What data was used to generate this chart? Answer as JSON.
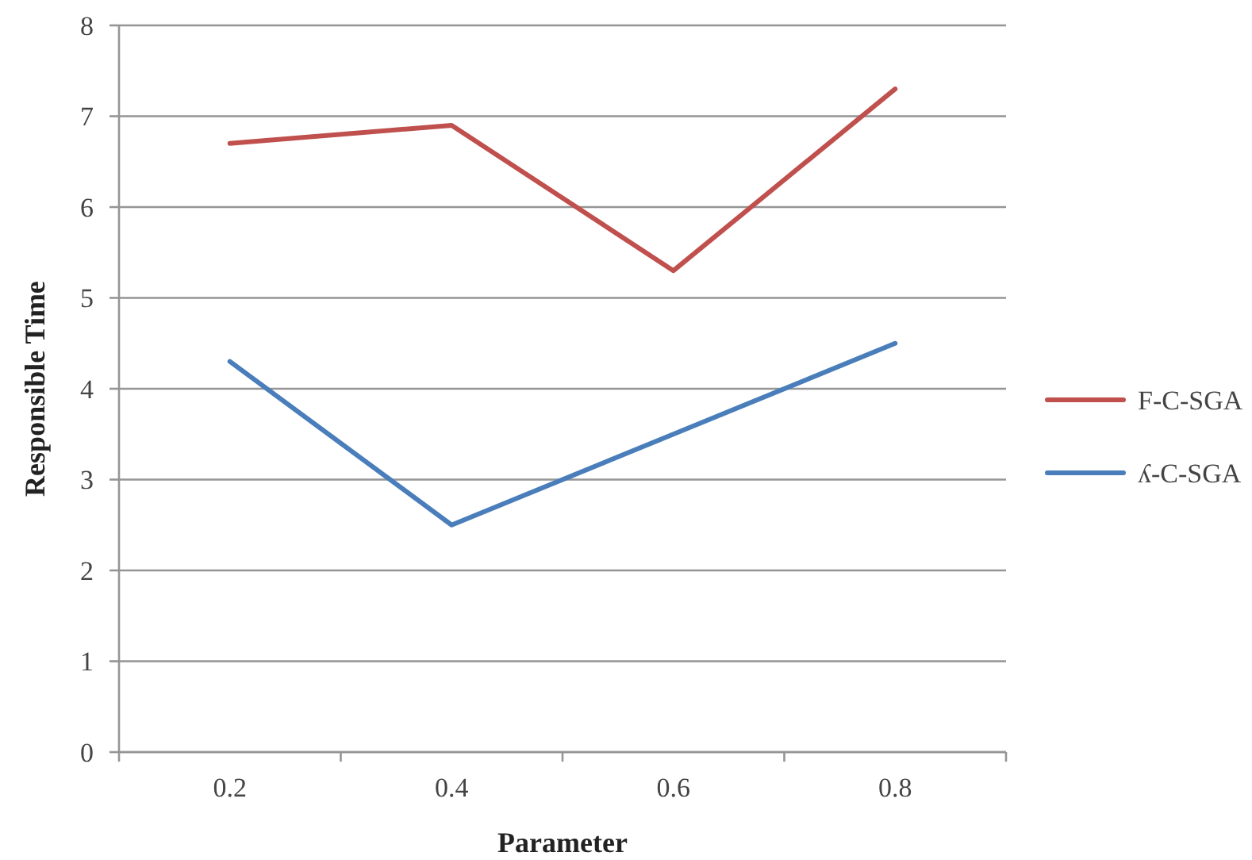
{
  "chart_data": {
    "type": "line",
    "xlabel": "Parameter",
    "ylabel": "Responsible Time",
    "categories": [
      "0.2",
      "0.4",
      "0.6",
      "0.8"
    ],
    "series": [
      {
        "name": "F-C-SGA",
        "color": "#c0504d",
        "values": [
          6.7,
          6.9,
          5.3,
          7.3
        ]
      },
      {
        "name": "ʎ-C-SGA",
        "color": "#4a7ebb",
        "values": [
          4.3,
          2.5,
          3.5,
          4.5
        ]
      }
    ],
    "ylim": [
      0,
      8
    ],
    "yticks": [
      0,
      1,
      2,
      3,
      4,
      5,
      6,
      7,
      8
    ],
    "grid": "y",
    "legend": "right",
    "marker": "none",
    "line_style": "solid"
  }
}
